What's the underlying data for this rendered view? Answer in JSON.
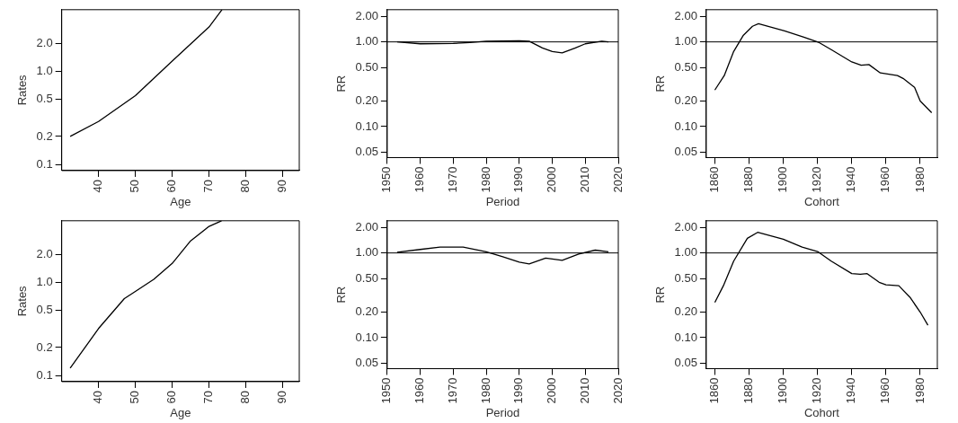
{
  "chart_data": [
    {
      "type": "line",
      "xlabel": "Age",
      "ylabel": "Rates",
      "log": "y",
      "grid": false,
      "xlim": [
        30,
        94.5
      ],
      "xticks": [
        40,
        50,
        60,
        70,
        80,
        90
      ],
      "ylim": [
        0.086,
        4.6
      ],
      "yticks": [
        {
          "value": 0.1,
          "label": "0.1"
        },
        {
          "value": 0.2,
          "label": "0.2"
        },
        {
          "value": 0.5,
          "label": "0.5"
        },
        {
          "value": 1,
          "label": "1.0"
        },
        {
          "value": 2,
          "label": "2.0"
        }
      ],
      "x": [
        32.3,
        40,
        50,
        60,
        70,
        73.5
      ],
      "series": [
        {
          "color": "#000000",
          "values": [
            0.2,
            0.29,
            0.55,
            1.29,
            3.0,
            4.6
          ]
        }
      ]
    },
    {
      "type": "line",
      "xlabel": "Period",
      "ylabel": "RR",
      "log": "y",
      "grid": false,
      "xlim": [
        1950,
        2020
      ],
      "xticks": [
        1950,
        1960,
        1970,
        1980,
        1990,
        2000,
        2010,
        2020
      ],
      "ylim": [
        0.043,
        2.4
      ],
      "yticks": [
        {
          "value": 0.05,
          "label": "0.05"
        },
        {
          "value": 0.1,
          "label": "0.10"
        },
        {
          "value": 0.2,
          "label": "0.20"
        },
        {
          "value": 0.5,
          "label": "0.50"
        },
        {
          "value": 1,
          "label": "1.00"
        },
        {
          "value": 2,
          "label": "2.00"
        }
      ],
      "ref_lines": [
        {
          "axis": "y",
          "value": 1,
          "color": "#000000"
        }
      ],
      "x": [
        1953,
        1960,
        1970,
        1975,
        1980,
        1990,
        1993,
        1997,
        2000,
        2003,
        2007,
        2010,
        2015,
        2017
      ],
      "series": [
        {
          "color": "#000000",
          "values": [
            1.0,
            0.95,
            0.96,
            0.98,
            1.02,
            1.03,
            1.02,
            0.85,
            0.77,
            0.74,
            0.85,
            0.95,
            1.02,
            1.0
          ]
        }
      ]
    },
    {
      "type": "line",
      "xlabel": "Cohort",
      "ylabel": "RR",
      "log": "y",
      "grid": false,
      "xlim": [
        1855,
        1990
      ],
      "xticks": [
        1860,
        1880,
        1900,
        1920,
        1940,
        1960,
        1980
      ],
      "ylim": [
        0.043,
        2.4
      ],
      "yticks": [
        {
          "value": 0.05,
          "label": "0.05"
        },
        {
          "value": 0.1,
          "label": "0.10"
        },
        {
          "value": 0.2,
          "label": "0.20"
        },
        {
          "value": 0.5,
          "label": "0.50"
        },
        {
          "value": 1,
          "label": "1.00"
        },
        {
          "value": 2,
          "label": "2.00"
        }
      ],
      "ref_lines": [
        {
          "axis": "y",
          "value": 1,
          "color": "#000000"
        }
      ],
      "x": [
        1860,
        1865.5,
        1871,
        1876.7,
        1882,
        1885.5,
        1900.7,
        1912,
        1921,
        1928,
        1940,
        1945.5,
        1950,
        1956.7,
        1966.7,
        1970,
        1976.7,
        1980,
        1986.7
      ],
      "series": [
        {
          "color": "#000000",
          "values": [
            0.27,
            0.4,
            0.77,
            1.2,
            1.53,
            1.64,
            1.35,
            1.14,
            0.98,
            0.81,
            0.58,
            0.53,
            0.54,
            0.43,
            0.4,
            0.37,
            0.29,
            0.2,
            0.146
          ]
        }
      ]
    },
    {
      "type": "line",
      "xlabel": "Age",
      "ylabel": "Rates",
      "log": "y",
      "grid": false,
      "xlim": [
        30,
        94.5
      ],
      "xticks": [
        40,
        50,
        60,
        70,
        80,
        90
      ],
      "ylim": [
        0.086,
        4.6
      ],
      "yticks": [
        {
          "value": 0.1,
          "label": "0.1"
        },
        {
          "value": 0.2,
          "label": "0.2"
        },
        {
          "value": 0.5,
          "label": "0.5"
        },
        {
          "value": 1,
          "label": "1.0"
        },
        {
          "value": 2,
          "label": "2.0"
        }
      ],
      "x": [
        32.3,
        40,
        47,
        50,
        55,
        60,
        65,
        70,
        73.4
      ],
      "series": [
        {
          "color": "#000000",
          "values": [
            0.12,
            0.32,
            0.67,
            0.8,
            1.08,
            1.6,
            2.8,
            4.0,
            4.6
          ]
        }
      ]
    },
    {
      "type": "line",
      "xlabel": "Period",
      "ylabel": "RR",
      "log": "y",
      "grid": false,
      "xlim": [
        1950,
        2020
      ],
      "xticks": [
        1950,
        1960,
        1970,
        1980,
        1990,
        2000,
        2010,
        2020
      ],
      "ylim": [
        0.043,
        2.4
      ],
      "yticks": [
        {
          "value": 0.05,
          "label": "0.05"
        },
        {
          "value": 0.1,
          "label": "0.10"
        },
        {
          "value": 0.2,
          "label": "0.20"
        },
        {
          "value": 0.5,
          "label": "0.50"
        },
        {
          "value": 1,
          "label": "1.00"
        },
        {
          "value": 2,
          "label": "2.00"
        }
      ],
      "ref_lines": [
        {
          "axis": "y",
          "value": 1,
          "color": "#000000"
        }
      ],
      "x": [
        1953,
        1960,
        1966,
        1973,
        1980,
        1985,
        1990,
        1993,
        1998,
        2003,
        2008,
        2013,
        2017
      ],
      "series": [
        {
          "color": "#000000",
          "values": [
            1.02,
            1.1,
            1.17,
            1.17,
            1.03,
            0.9,
            0.78,
            0.74,
            0.87,
            0.82,
            0.97,
            1.08,
            1.03
          ]
        }
      ]
    },
    {
      "type": "line",
      "xlabel": "Cohort",
      "ylabel": "RR",
      "log": "y",
      "grid": false,
      "xlim": [
        1855,
        1990
      ],
      "xticks": [
        1860,
        1880,
        1900,
        1920,
        1940,
        1960,
        1980
      ],
      "ylim": [
        0.043,
        2.4
      ],
      "yticks": [
        {
          "value": 0.05,
          "label": "0.05"
        },
        {
          "value": 0.1,
          "label": "0.10"
        },
        {
          "value": 0.2,
          "label": "0.20"
        },
        {
          "value": 0.5,
          "label": "0.50"
        },
        {
          "value": 1,
          "label": "1.00"
        },
        {
          "value": 2,
          "label": "2.00"
        }
      ],
      "ref_lines": [
        {
          "axis": "y",
          "value": 1,
          "color": "#000000"
        }
      ],
      "x": [
        1860,
        1865,
        1871,
        1879,
        1885,
        1900,
        1911,
        1920,
        1928,
        1940,
        1945,
        1949,
        1956,
        1960,
        1967.5,
        1974,
        1980,
        1984.5
      ],
      "series": [
        {
          "color": "#000000",
          "values": [
            0.26,
            0.41,
            0.8,
            1.49,
            1.75,
            1.45,
            1.17,
            1.04,
            0.8,
            0.57,
            0.56,
            0.57,
            0.45,
            0.42,
            0.41,
            0.3,
            0.2,
            0.14
          ]
        }
      ]
    }
  ]
}
